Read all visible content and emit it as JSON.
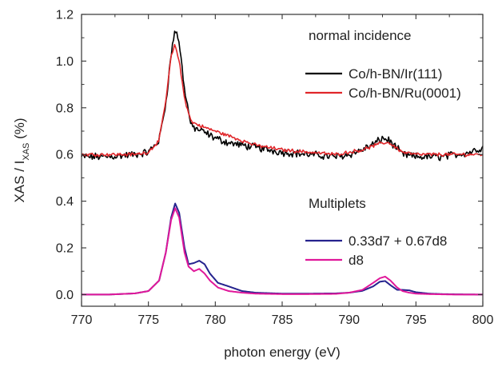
{
  "chart_data": {
    "type": "line",
    "title": "",
    "xlabel": "photon energy (eV)",
    "ylabel": {
      "main": "XAS / I",
      "sub": "XAS",
      "unit": " (%)"
    },
    "xlim": [
      770,
      800
    ],
    "ylim": [
      -0.05,
      1.2
    ],
    "xticks": [
      770,
      775,
      780,
      785,
      790,
      795,
      800
    ],
    "yticks": [
      0.0,
      0.2,
      0.4,
      0.6,
      0.8,
      1.0,
      1.2
    ],
    "ytick_labels": [
      "0.0",
      "0.2",
      "0.4",
      "0.6",
      "0.8",
      "1.0",
      "1.2"
    ],
    "grid": false,
    "legend_groups": [
      {
        "header": "normal incidence",
        "entries": [
          {
            "name": "Co/h-BN/Ir(111)",
            "color": "#000000"
          },
          {
            "name": "Co/h-BN/Ru(0001)",
            "color": "#e0262a"
          }
        ]
      },
      {
        "header": "Multiplets",
        "entries": [
          {
            "name": "0.33d7 + 0.67d8",
            "color": "#25238e"
          },
          {
            "name": "d8",
            "color": "#e0189a"
          }
        ]
      }
    ],
    "series": [
      {
        "name": "Co/h-BN/Ir(111)",
        "color": "#000000",
        "noise": 0.013,
        "x": [
          770,
          772,
          774,
          775,
          775.8,
          776.3,
          776.7,
          777.0,
          777.3,
          777.7,
          778.2,
          779,
          780,
          781,
          782,
          783,
          785,
          787,
          789,
          790,
          791,
          792,
          792.5,
          793,
          793.5,
          794,
          795,
          796,
          797,
          798,
          799,
          800
        ],
        "y": [
          0.59,
          0.59,
          0.6,
          0.61,
          0.66,
          0.82,
          1.03,
          1.14,
          1.08,
          0.88,
          0.72,
          0.7,
          0.67,
          0.65,
          0.64,
          0.63,
          0.61,
          0.6,
          0.59,
          0.6,
          0.62,
          0.65,
          0.67,
          0.66,
          0.63,
          0.6,
          0.59,
          0.59,
          0.59,
          0.6,
          0.61,
          0.63
        ]
      },
      {
        "name": "Co/h-BN/Ru(0001)",
        "color": "#e0262a",
        "noise": 0.006,
        "x": [
          770,
          772,
          774,
          775,
          775.8,
          776.3,
          776.7,
          777.0,
          777.3,
          777.7,
          778.2,
          779,
          780,
          781,
          782,
          783,
          785,
          787,
          789,
          790,
          791,
          792,
          792.5,
          793,
          793.5,
          794,
          795,
          796,
          797,
          798,
          799,
          800
        ],
        "y": [
          0.6,
          0.6,
          0.6,
          0.61,
          0.66,
          0.83,
          1.02,
          1.07,
          1.0,
          0.84,
          0.74,
          0.72,
          0.7,
          0.68,
          0.66,
          0.64,
          0.62,
          0.61,
          0.6,
          0.61,
          0.62,
          0.64,
          0.65,
          0.65,
          0.63,
          0.61,
          0.6,
          0.6,
          0.6,
          0.6,
          0.6,
          0.6
        ]
      },
      {
        "name": "0.33d7 + 0.67d8",
        "color": "#25238e",
        "noise": 0,
        "x": [
          770,
          772,
          774,
          775,
          775.8,
          776.3,
          776.7,
          777.0,
          777.3,
          777.7,
          778.0,
          778.4,
          778.8,
          779.2,
          779.6,
          780.2,
          781,
          782,
          783,
          785,
          787,
          789,
          790,
          791,
          791.8,
          792.3,
          792.7,
          793.1,
          793.6,
          794.0,
          794.5,
          795,
          796,
          797,
          798,
          800
        ],
        "y": [
          0.0,
          0.0,
          0.005,
          0.015,
          0.06,
          0.18,
          0.33,
          0.39,
          0.35,
          0.2,
          0.13,
          0.135,
          0.145,
          0.13,
          0.09,
          0.05,
          0.035,
          0.015,
          0.008,
          0.004,
          0.004,
          0.005,
          0.008,
          0.016,
          0.035,
          0.055,
          0.058,
          0.04,
          0.02,
          0.02,
          0.018,
          0.01,
          0.004,
          0.002,
          0.001,
          0.0
        ]
      },
      {
        "name": "d8",
        "color": "#e0189a",
        "noise": 0,
        "x": [
          770,
          772,
          774,
          775,
          775.8,
          776.3,
          776.7,
          777.0,
          777.3,
          777.7,
          778.0,
          778.4,
          778.8,
          779.2,
          779.6,
          780.2,
          781,
          782,
          783,
          785,
          787,
          789,
          790,
          791,
          791.8,
          792.3,
          792.7,
          793.1,
          793.6,
          794.0,
          794.5,
          795,
          796,
          797,
          798,
          800
        ],
        "y": [
          0.0,
          0.0,
          0.005,
          0.015,
          0.06,
          0.18,
          0.32,
          0.37,
          0.33,
          0.18,
          0.12,
          0.1,
          0.11,
          0.09,
          0.06,
          0.03,
          0.015,
          0.008,
          0.004,
          0.002,
          0.002,
          0.003,
          0.008,
          0.02,
          0.05,
          0.07,
          0.077,
          0.06,
          0.03,
          0.015,
          0.008,
          0.004,
          0.002,
          0.001,
          0.0,
          0.0
        ]
      }
    ]
  }
}
